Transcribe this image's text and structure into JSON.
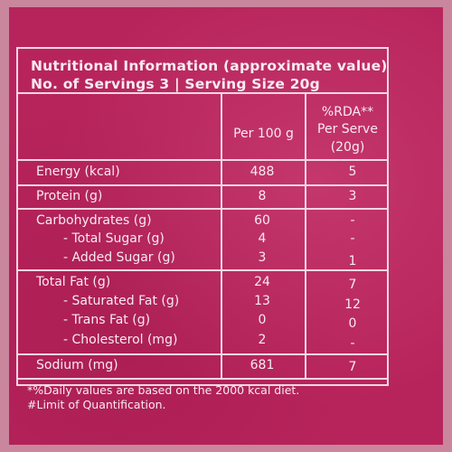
{
  "title": "Nutritional Information (approximate value)",
  "subtitle": "No. of Servings 3 | Serving Size 20g",
  "columns": {
    "per100": "Per 100 g",
    "rda_line1": "%RDA**",
    "rda_line2": "Per Serve",
    "rda_line3": "(20g)"
  },
  "rows": [
    {
      "label": "Energy (kcal)",
      "per100": "488",
      "rda": "5"
    },
    {
      "label": "Protein (g)",
      "per100": "8",
      "rda": "3"
    },
    {
      "label": "Carbohydrates (g)",
      "per100": "60",
      "rda": "-"
    },
    {
      "label": "- Total Sugar (g)",
      "per100": "4",
      "rda": "-"
    },
    {
      "label": "- Added Sugar (g)",
      "per100": "3",
      "rda": "1"
    },
    {
      "label": "Total Fat (g)",
      "per100": "24",
      "rda": "7"
    },
    {
      "label": "- Saturated Fat (g)",
      "per100": "13",
      "rda": "12"
    },
    {
      "label": "- Trans Fat (g)",
      "per100": "0",
      "rda": "0"
    },
    {
      "label": "- Cholesterol (mg)",
      "per100": "2",
      "rda": "-"
    },
    {
      "label": "Sodium (mg)",
      "per100": "681",
      "rda": "7"
    }
  ],
  "footnotes": [
    "*%Daily values are based on the 2000 kcal diet.",
    "#Limit of Quantification."
  ]
}
